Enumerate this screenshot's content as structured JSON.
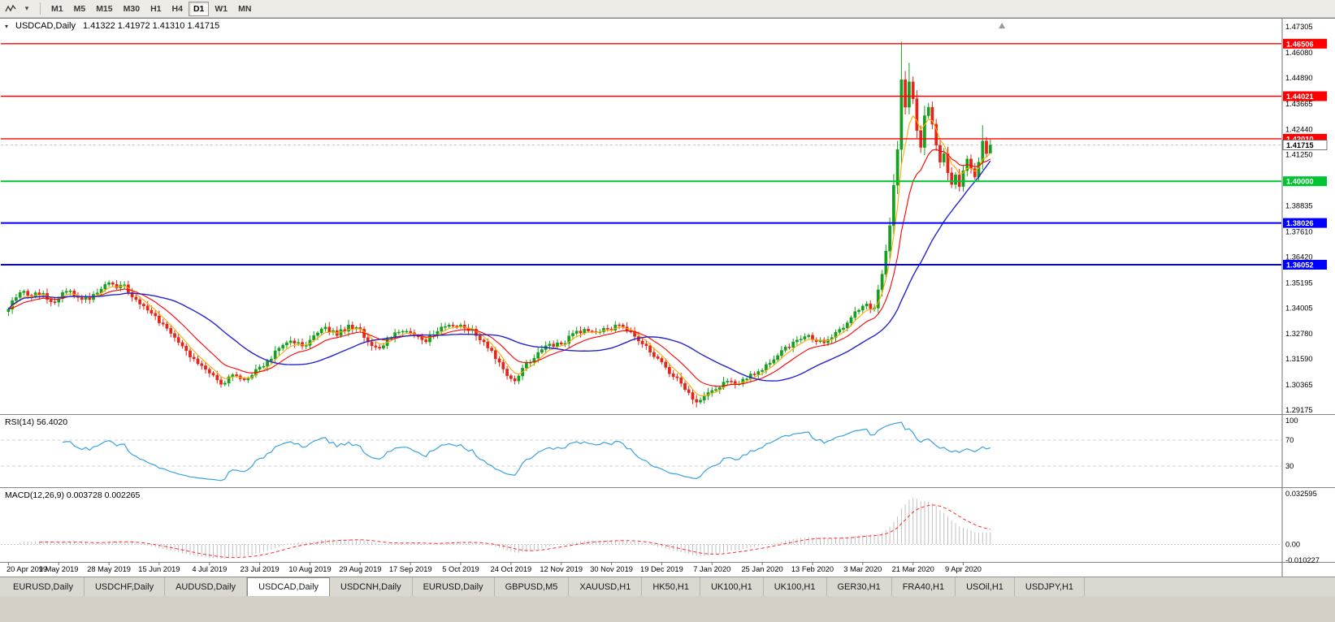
{
  "toolbar": {
    "timeframes": [
      "M1",
      "M5",
      "M15",
      "M30",
      "H1",
      "H4",
      "D1",
      "W1",
      "MN"
    ],
    "active_timeframe": "D1",
    "dropdown_glyph": "▾"
  },
  "chart": {
    "context_icon_glyph": "▾",
    "title_symbol": "USDCAD,Daily",
    "title_ohlc": "1.41322 1.41972 1.41310 1.41715"
  },
  "chart_data": {
    "type": "candlestick",
    "symbol": "USDCAD",
    "period": "Daily",
    "ohlc_readout": {
      "open": 1.41322,
      "high": 1.41972,
      "low": 1.4131,
      "close": 1.41715
    },
    "y_axis": {
      "max": 1.47305,
      "min": 1.29175,
      "tick_labels": [
        "1.47305",
        "1.46080",
        "1.44890",
        "1.43665",
        "1.42440",
        "1.41250",
        "1.40025",
        "1.38835",
        "1.37610",
        "1.36420",
        "1.35195",
        "1.34005",
        "1.32780",
        "1.31590",
        "1.30365",
        "1.29175"
      ]
    },
    "x_axis": {
      "tick_step": 13,
      "tick_labels": [
        "20 Apr 2019",
        "9 May 2019",
        "28 May 2019",
        "15 Jun 2019",
        "4 Jul 2019",
        "23 Jul 2019",
        "10 Aug 2019",
        "29 Aug 2019",
        "17 Sep 2019",
        "5 Oct 2019",
        "24 Oct 2019",
        "12 Nov 2019",
        "30 Nov 2019",
        "19 Dec 2019",
        "7 Jan 2020",
        "25 Jan 2020",
        "13 Feb 2020",
        "3 Mar 2020",
        "21 Mar 2020",
        "9 Apr 2020"
      ]
    },
    "visible_slots": 330,
    "candle_count": 255,
    "noise_amp": 0.0014,
    "price_path": [
      [
        0,
        1.3395
      ],
      [
        2,
        1.345
      ],
      [
        4,
        1.348
      ],
      [
        6,
        1.3455
      ],
      [
        9,
        1.347
      ],
      [
        11,
        1.343
      ],
      [
        13,
        1.3445
      ],
      [
        15,
        1.348
      ],
      [
        18,
        1.345
      ],
      [
        21,
        1.344
      ],
      [
        24,
        1.349
      ],
      [
        26,
        1.352
      ],
      [
        28,
        1.3495
      ],
      [
        30,
        1.351
      ],
      [
        33,
        1.344
      ],
      [
        36,
        1.339
      ],
      [
        39,
        1.333
      ],
      [
        42,
        1.328
      ],
      [
        45,
        1.322
      ],
      [
        48,
        1.316
      ],
      [
        51,
        1.311
      ],
      [
        54,
        1.306
      ],
      [
        56,
        1.3045
      ],
      [
        58,
        1.3085
      ],
      [
        61,
        1.306
      ],
      [
        64,
        1.311
      ],
      [
        67,
        1.315
      ],
      [
        70,
        1.321
      ],
      [
        73,
        1.3245
      ],
      [
        76,
        1.322
      ],
      [
        79,
        1.327
      ],
      [
        82,
        1.331
      ],
      [
        85,
        1.327
      ],
      [
        88,
        1.332
      ],
      [
        91,
        1.33
      ],
      [
        93,
        1.324
      ],
      [
        96,
        1.321
      ],
      [
        99,
        1.326
      ],
      [
        102,
        1.329
      ],
      [
        105,
        1.327
      ],
      [
        108,
        1.324
      ],
      [
        111,
        1.329
      ],
      [
        114,
        1.332
      ],
      [
        117,
        1.332
      ],
      [
        120,
        1.33
      ],
      [
        123,
        1.324
      ],
      [
        126,
        1.316
      ],
      [
        129,
        1.308
      ],
      [
        131,
        1.3055
      ],
      [
        134,
        1.314
      ],
      [
        137,
        1.319
      ],
      [
        140,
        1.323
      ],
      [
        143,
        1.323
      ],
      [
        146,
        1.328
      ],
      [
        149,
        1.33
      ],
      [
        152,
        1.3285
      ],
      [
        155,
        1.33
      ],
      [
        158,
        1.332
      ],
      [
        161,
        1.329
      ],
      [
        164,
        1.323
      ],
      [
        167,
        1.317
      ],
      [
        170,
        1.312
      ],
      [
        173,
        1.307
      ],
      [
        176,
        1.3
      ],
      [
        178,
        1.2955
      ],
      [
        180,
        1.2985
      ],
      [
        182,
        1.301
      ],
      [
        185,
        1.305
      ],
      [
        188,
        1.304
      ],
      [
        191,
        1.3065
      ],
      [
        194,
        1.31
      ],
      [
        197,
        1.314
      ],
      [
        200,
        1.32
      ],
      [
        203,
        1.324
      ],
      [
        206,
        1.3265
      ],
      [
        208,
        1.325
      ],
      [
        211,
        1.3235
      ],
      [
        214,
        1.3285
      ],
      [
        217,
        1.333
      ],
      [
        220,
        1.339
      ],
      [
        222,
        1.342
      ],
      [
        224,
        1.34
      ],
      [
        226,
        1.356
      ],
      [
        228,
        1.379
      ],
      [
        230,
        1.415
      ],
      [
        231,
        1.448
      ],
      [
        232,
        1.435
      ],
      [
        233,
        1.447
      ],
      [
        234,
        1.439
      ],
      [
        235,
        1.424
      ],
      [
        236,
        1.416
      ],
      [
        237,
        1.431
      ],
      [
        238,
        1.435
      ],
      [
        239,
        1.427
      ],
      [
        240,
        1.417
      ],
      [
        241,
        1.409
      ],
      [
        242,
        1.413
      ],
      [
        243,
        1.404
      ],
      [
        244,
        1.3985
      ],
      [
        245,
        1.403
      ],
      [
        246,
        1.3975
      ],
      [
        247,
        1.405
      ],
      [
        248,
        1.4105
      ],
      [
        249,
        1.406
      ],
      [
        250,
        1.402
      ],
      [
        251,
        1.409
      ],
      [
        252,
        1.419
      ],
      [
        253,
        1.4131
      ],
      [
        254,
        1.41715
      ]
    ],
    "candle_overrides": {
      "131": {
        "low": 1.3038
      },
      "178": {
        "low": 1.293
      },
      "231": {
        "high": 1.466
      },
      "233": {
        "high": 1.456
      },
      "252": {
        "high": 1.4265
      },
      "254": {
        "open": 1.41322,
        "high": 1.41972,
        "low": 1.4131,
        "close": 1.41715
      }
    },
    "candle_colors": {
      "up": "#15a01e",
      "down": "#e3261b"
    },
    "moving_averages": [
      {
        "name": "ma-fast",
        "type": "ema",
        "period": 5,
        "color": "#ffaa00",
        "width": 1.1
      },
      {
        "name": "ma-medium",
        "type": "ema",
        "period": 13,
        "color": "#ff0000",
        "width": 1.1
      },
      {
        "name": "ma-slow",
        "type": "sma",
        "period": 30,
        "color": "#2424cf",
        "width": 1.4
      }
    ],
    "horizontal_lines": [
      {
        "price": 1.46506,
        "label": "1.46506",
        "color": "#ff0000",
        "width": 1.4
      },
      {
        "price": 1.44021,
        "label": "1.44021",
        "color": "#ff0000",
        "width": 1.4
      },
      {
        "price": 1.4201,
        "label": "1.42010",
        "color": "#ff0000",
        "width": 1.4
      },
      {
        "price": 1.4,
        "label": "1.40000",
        "color": "#00c432",
        "width": 2
      },
      {
        "price": 1.38026,
        "label": "1.38026",
        "color": "#0000ff",
        "width": 2
      },
      {
        "price": 1.36052,
        "label": "1.36052",
        "color": "#0000ff",
        "width": 2
      }
    ],
    "current_price": {
      "value": 1.41715,
      "label": "1.41715"
    },
    "indicators": {
      "rsi": {
        "label": "RSI(14) 56.4020",
        "period": 14,
        "value": 56.402,
        "levels": [
          70,
          30
        ],
        "axis_labels": [
          "100",
          "70",
          "30"
        ],
        "line_color": "#3aa2de"
      },
      "macd": {
        "label": "MACD(12,26,9) 0.003728 0.002265",
        "fast": 12,
        "slow": 26,
        "signal_period": 9,
        "macd_value": 0.003728,
        "signal_value": 0.002265,
        "axis_labels": [
          "0.032595",
          "0.00",
          "-0.010227"
        ],
        "axis_max": 0.032595,
        "axis_min": -0.010227,
        "histogram_color": "#c0c0c0",
        "signal_color": "#ff2d2d"
      }
    }
  },
  "bottom_tabs": {
    "active_index": 3,
    "items": [
      "EURUSD,Daily",
      "USDCHF,Daily",
      "AUDUSD,Daily",
      "USDCAD,Daily",
      "USDCNH,Daily",
      "EURUSD,Daily",
      "GBPUSD,M5",
      "XAUUSD,H1",
      "HK50,H1",
      "UK100,H1",
      "UK100,H1",
      "GER30,H1",
      "FRA40,H1",
      "USOil,H1",
      "USDJPY,H1"
    ]
  }
}
